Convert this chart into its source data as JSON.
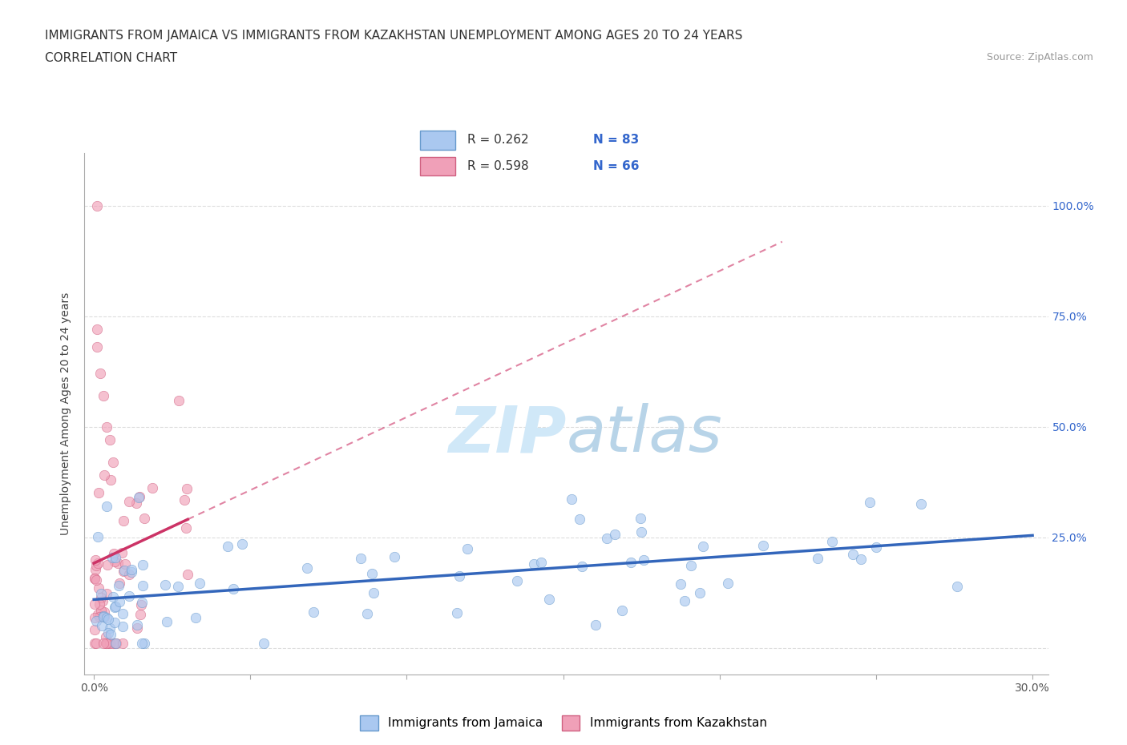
{
  "title_line1": "IMMIGRANTS FROM JAMAICA VS IMMIGRANTS FROM KAZAKHSTAN UNEMPLOYMENT AMONG AGES 20 TO 24 YEARS",
  "title_line2": "CORRELATION CHART",
  "source_text": "Source: ZipAtlas.com",
  "ylabel": "Unemployment Among Ages 20 to 24 years",
  "xlim": [
    -0.003,
    0.305
  ],
  "ylim": [
    -0.06,
    1.12
  ],
  "xtick_positions": [
    0.0,
    0.05,
    0.1,
    0.15,
    0.2,
    0.25,
    0.3
  ],
  "xtick_labels": [
    "0.0%",
    "",
    "",
    "",
    "",
    "",
    "30.0%"
  ],
  "ytick_positions": [
    0.0,
    0.25,
    0.5,
    0.75,
    1.0
  ],
  "ytick_labels_right": [
    "",
    "25.0%",
    "50.0%",
    "75.0%",
    "100.0%"
  ],
  "jamaica_color": "#aac8f0",
  "jamaica_edge": "#6699cc",
  "kazakhstan_color": "#f0a0b8",
  "kazakhstan_edge": "#d06080",
  "jamaica_R": 0.262,
  "jamaica_N": 83,
  "kazakhstan_R": 0.598,
  "kazakhstan_N": 66,
  "jamaica_line_color": "#3366bb",
  "kazakhstan_line_color": "#cc3366",
  "watermark_color": "#d0e8f8",
  "legend_label_jamaica": "Immigrants from Jamaica",
  "legend_label_kazakhstan": "Immigrants from Kazakhstan",
  "grid_color": "#dddddd",
  "background_color": "#ffffff",
  "title_fontsize": 11,
  "label_fontsize": 10,
  "tick_fontsize": 10,
  "legend_fontsize": 11,
  "right_ytick_color": "#3366cc",
  "legend_R_color": "#333333",
  "legend_N_color": "#3366cc"
}
